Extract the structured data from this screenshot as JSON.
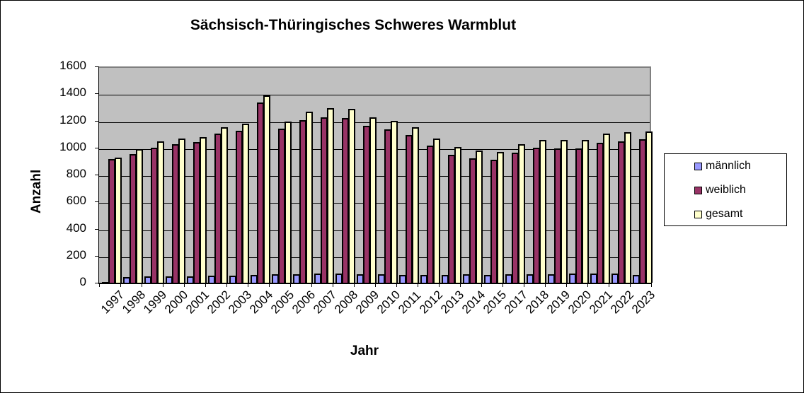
{
  "chart_data": {
    "type": "bar",
    "title": "Sächsisch-Thüringisches Schweres Warmblut",
    "xlabel": "Jahr",
    "ylabel": "Anzahl",
    "ylim": [
      0,
      1600
    ],
    "yticks": [
      0,
      200,
      400,
      600,
      800,
      1000,
      1200,
      1400,
      1600
    ],
    "grid": true,
    "legend_position": "right",
    "categories": [
      "1997",
      "1998",
      "1999",
      "2000",
      "2001",
      "2002",
      "2003",
      "2004",
      "2005",
      "2006",
      "2007",
      "2008",
      "2009",
      "2010",
      "2011",
      "2012",
      "2013",
      "2014",
      "2015",
      "2017",
      "2018",
      "2019",
      "2020",
      "2021",
      "2022",
      "2023"
    ],
    "series": [
      {
        "name": "männlich",
        "color": "#9999ff",
        "values": [
          5,
          42,
          47,
          47,
          47,
          52,
          52,
          57,
          63,
          63,
          70,
          66,
          62,
          62,
          57,
          57,
          57,
          62,
          55,
          62,
          62,
          62,
          67,
          67,
          67,
          57
        ]
      },
      {
        "name": "weiblich",
        "color": "#993366",
        "values": [
          915,
          952,
          1001,
          1027,
          1038,
          1103,
          1124,
          1333,
          1140,
          1205,
          1224,
          1218,
          1161,
          1135,
          1093,
          1014,
          946,
          920,
          910,
          962,
          1001,
          994,
          994,
          1035,
          1046,
          1061
        ]
      },
      {
        "name": "gesamt",
        "color": "#ffffcc",
        "values": [
          925,
          990,
          1048,
          1067,
          1077,
          1150,
          1174,
          1388,
          1192,
          1265,
          1291,
          1286,
          1224,
          1197,
          1150,
          1067,
          1004,
          978,
          967,
          1025,
          1056,
          1056,
          1056,
          1103,
          1114,
          1119
        ]
      }
    ]
  }
}
